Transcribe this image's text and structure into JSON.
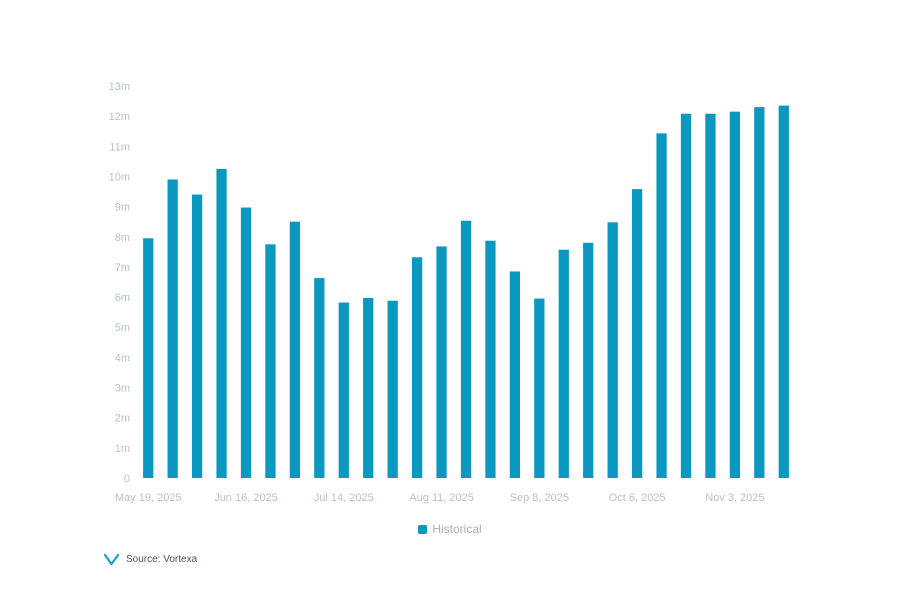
{
  "colors": {
    "bar": "#0b98bf",
    "axis_text": "#b8c2cc",
    "logo": "#1f9fc4"
  },
  "legend": {
    "label": "Historical"
  },
  "source": {
    "text": "Source: Vortexa",
    "logo_icon": "vortexa-v-logo"
  },
  "chart_data": {
    "type": "bar",
    "title": "",
    "xlabel": "",
    "ylabel": "",
    "ylim": [
      0,
      13
    ],
    "y_ticks": [
      "0",
      "1m",
      "2m",
      "3m",
      "4m",
      "5m",
      "6m",
      "7m",
      "8m",
      "9m",
      "10m",
      "11m",
      "12m",
      "13m"
    ],
    "x_tick_labels": [
      {
        "index": 0,
        "label": "May 19, 2025"
      },
      {
        "index": 4,
        "label": "Jun 16, 2025"
      },
      {
        "index": 8,
        "label": "Jul 14, 2025"
      },
      {
        "index": 12,
        "label": "Aug 11, 2025"
      },
      {
        "index": 16,
        "label": "Sep 8, 2025"
      },
      {
        "index": 20,
        "label": "Oct 6, 2025"
      },
      {
        "index": 24,
        "label": "Nov 3, 2025"
      }
    ],
    "categories": [
      "2025-05-19",
      "2025-05-26",
      "2025-06-02",
      "2025-06-09",
      "2025-06-16",
      "2025-06-23",
      "2025-06-30",
      "2025-07-07",
      "2025-07-14",
      "2025-07-21",
      "2025-07-28",
      "2025-08-04",
      "2025-08-11",
      "2025-08-18",
      "2025-08-25",
      "2025-09-01",
      "2025-09-08",
      "2025-09-15",
      "2025-09-22",
      "2025-09-29",
      "2025-10-06",
      "2025-10-13",
      "2025-10-20",
      "2025-10-27",
      "2025-11-03",
      "2025-11-10",
      "2025-11-17"
    ],
    "series": [
      {
        "name": "Historical",
        "values": [
          7.95,
          9.9,
          9.4,
          10.25,
          8.97,
          7.75,
          8.5,
          6.63,
          5.82,
          5.97,
          5.88,
          7.32,
          7.68,
          8.53,
          7.87,
          6.85,
          5.95,
          7.57,
          7.8,
          8.48,
          9.58,
          11.43,
          12.08,
          12.08,
          12.15,
          12.3,
          12.35
        ]
      }
    ],
    "grid": false,
    "legend_position": "bottom-center"
  }
}
